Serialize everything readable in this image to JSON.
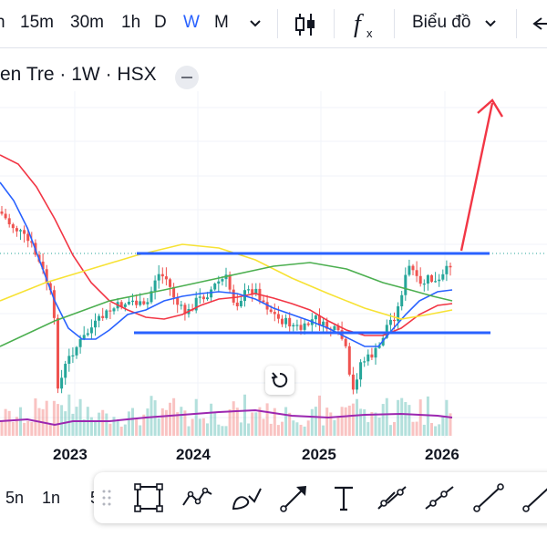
{
  "timeframes": [
    {
      "label": "h",
      "active": false
    },
    {
      "label": "15m",
      "active": false
    },
    {
      "label": "30m",
      "active": false
    },
    {
      "label": "1h",
      "active": false
    },
    {
      "label": "D",
      "active": false
    },
    {
      "label": "W",
      "active": true
    },
    {
      "label": "M",
      "active": false
    }
  ],
  "toolbar": {
    "chart_type_label": "Biểu đồ",
    "indicator_symbol": "f",
    "indicator_sub": "x"
  },
  "legend": {
    "symbol": "en Tre",
    "interval": "1W",
    "exchange": "HSX",
    "separator": "·"
  },
  "x_axis": {
    "years": [
      "2023",
      "2024",
      "2025",
      "2026"
    ]
  },
  "periods": [
    "5n",
    "1n",
    "5"
  ],
  "colors": {
    "up": "#26a69a",
    "down": "#ef5350",
    "ma_blue": "#2962ff",
    "ma_red": "#f23645",
    "ma_yellow": "#f7e234",
    "ma_green": "#4caf50",
    "volume_ma": "#9c27b0",
    "level_line": "#2962ff",
    "arrow": "#f23645",
    "active": "#2962ff"
  },
  "chart_data": {
    "type": "candlestick",
    "interval": "weekly",
    "resistance_level": "upper horizontal blue line",
    "support_level": "lower horizontal blue line",
    "annotation": "red arrow pointing up (breakout projection)"
  },
  "icons": {
    "candles": "candles-icon",
    "undo": "reset-icon",
    "drag": "drag-handle-icon"
  }
}
